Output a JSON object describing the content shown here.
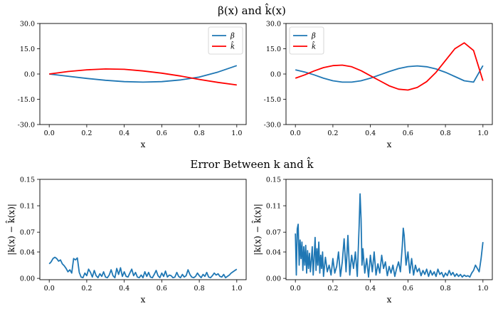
{
  "page": {
    "title_top": "β(x) and k̂(x)",
    "title_bottom": "Error Between k and k̂"
  },
  "colors": {
    "beta": "#1f77b4",
    "khat": "#ff0000",
    "error": "#1f77b4",
    "axis": "#000000"
  },
  "chart_data": [
    {
      "type": "line",
      "id": "top-left",
      "title": "",
      "xlabel": "x",
      "ylabel": "",
      "xlim": [
        -0.05,
        1.05
      ],
      "ylim": [
        -30,
        30
      ],
      "xticks": [
        0.0,
        0.2,
        0.4,
        0.6,
        0.8,
        1.0
      ],
      "xtick_labels": [
        "0.0",
        "0.2",
        "0.4",
        "0.6",
        "0.8",
        "1.0"
      ],
      "yticks": [
        -30,
        -15,
        0,
        15,
        30
      ],
      "ytick_labels": [
        "-30.0",
        "-15.0",
        "0.0",
        "15.0",
        "30.0"
      ],
      "legend": "top-right",
      "series": [
        {
          "name": "β",
          "color_key": "beta",
          "x": [
            0.0,
            0.1,
            0.2,
            0.3,
            0.4,
            0.5,
            0.6,
            0.7,
            0.8,
            0.9,
            1.0
          ],
          "y": [
            0.0,
            -1.3,
            -2.6,
            -3.7,
            -4.5,
            -4.8,
            -4.5,
            -3.5,
            -1.8,
            1.2,
            5.0
          ]
        },
        {
          "name": "k̂",
          "color_key": "khat",
          "x": [
            0.0,
            0.1,
            0.2,
            0.3,
            0.4,
            0.5,
            0.6,
            0.7,
            0.8,
            0.9,
            1.0
          ],
          "y": [
            0.0,
            1.5,
            2.5,
            3.0,
            2.8,
            1.8,
            0.5,
            -1.2,
            -3.2,
            -5.0,
            -6.5
          ]
        }
      ]
    },
    {
      "type": "line",
      "id": "top-right",
      "title": "",
      "xlabel": "x",
      "ylabel": "",
      "xlim": [
        -0.05,
        1.05
      ],
      "ylim": [
        -30,
        30
      ],
      "xticks": [
        0.0,
        0.2,
        0.4,
        0.6,
        0.8,
        1.0
      ],
      "xtick_labels": [
        "0.0",
        "0.2",
        "0.4",
        "0.6",
        "0.8",
        "1.0"
      ],
      "yticks": [
        -30,
        -15,
        0,
        15,
        30
      ],
      "ytick_labels": [
        "-30.0",
        "-15.0",
        "0.0",
        "15.0",
        "30.0"
      ],
      "legend": "top-left",
      "series": [
        {
          "name": "β",
          "color_key": "beta",
          "x": [
            0.0,
            0.05,
            0.1,
            0.15,
            0.2,
            0.25,
            0.3,
            0.35,
            0.4,
            0.45,
            0.5,
            0.55,
            0.6,
            0.65,
            0.7,
            0.75,
            0.8,
            0.85,
            0.9,
            0.95,
            1.0
          ],
          "y": [
            2.5,
            1.2,
            -0.5,
            -2.5,
            -4.0,
            -4.8,
            -4.8,
            -4.0,
            -2.5,
            -0.5,
            1.5,
            3.2,
            4.4,
            4.8,
            4.3,
            3.0,
            1.0,
            -1.5,
            -4.0,
            -4.8,
            5.0
          ]
        },
        {
          "name": "k̂",
          "color_key": "khat",
          "x": [
            0.0,
            0.05,
            0.1,
            0.15,
            0.2,
            0.25,
            0.3,
            0.35,
            0.4,
            0.45,
            0.5,
            0.55,
            0.6,
            0.65,
            0.7,
            0.75,
            0.8,
            0.85,
            0.9,
            0.95,
            1.0
          ],
          "y": [
            -2.5,
            -0.5,
            1.8,
            3.8,
            5.0,
            5.3,
            4.3,
            2.0,
            -1.0,
            -4.0,
            -7.0,
            -9.0,
            -9.5,
            -8.0,
            -4.5,
            1.0,
            8.0,
            15.0,
            18.5,
            14.0,
            -4.0
          ]
        }
      ]
    },
    {
      "type": "line",
      "id": "bottom-left",
      "title": "",
      "xlabel": "x",
      "ylabel": "|k(x) − k̂(x)|",
      "xlim": [
        -0.05,
        1.05
      ],
      "ylim": [
        -0.002,
        0.15
      ],
      "xticks": [
        0.0,
        0.2,
        0.4,
        0.6,
        0.8,
        1.0
      ],
      "xtick_labels": [
        "0.0",
        "0.2",
        "0.4",
        "0.6",
        "0.8",
        "1.0"
      ],
      "yticks": [
        0.0,
        0.04,
        0.07,
        0.11,
        0.15
      ],
      "ytick_labels": [
        "0.00",
        "0.04",
        "0.07",
        "0.11",
        "0.15"
      ],
      "legend": "none",
      "series": [
        {
          "name": "error",
          "color_key": "error",
          "x": [
            0.0,
            0.01,
            0.02,
            0.03,
            0.04,
            0.05,
            0.06,
            0.07,
            0.08,
            0.09,
            0.1,
            0.11,
            0.12,
            0.13,
            0.14,
            0.15,
            0.16,
            0.17,
            0.18,
            0.19,
            0.2,
            0.21,
            0.22,
            0.23,
            0.24,
            0.25,
            0.26,
            0.27,
            0.28,
            0.29,
            0.3,
            0.31,
            0.32,
            0.33,
            0.34,
            0.35,
            0.36,
            0.37,
            0.38,
            0.39,
            0.4,
            0.41,
            0.42,
            0.43,
            0.44,
            0.45,
            0.46,
            0.47,
            0.48,
            0.49,
            0.5,
            0.51,
            0.52,
            0.53,
            0.54,
            0.55,
            0.56,
            0.57,
            0.58,
            0.59,
            0.6,
            0.61,
            0.62,
            0.63,
            0.64,
            0.65,
            0.66,
            0.67,
            0.68,
            0.69,
            0.7,
            0.71,
            0.72,
            0.73,
            0.74,
            0.75,
            0.76,
            0.77,
            0.78,
            0.79,
            0.8,
            0.81,
            0.82,
            0.83,
            0.84,
            0.85,
            0.86,
            0.87,
            0.88,
            0.89,
            0.9,
            0.91,
            0.92,
            0.93,
            0.94,
            0.95,
            0.96,
            0.97,
            0.98,
            0.99,
            1.0
          ],
          "y": [
            0.022,
            0.025,
            0.03,
            0.032,
            0.03,
            0.026,
            0.028,
            0.022,
            0.019,
            0.015,
            0.01,
            0.013,
            0.008,
            0.03,
            0.028,
            0.031,
            0.009,
            0.002,
            0.001,
            0.008,
            0.004,
            0.014,
            0.009,
            0.002,
            0.012,
            0.004,
            0.001,
            0.007,
            0.003,
            0.01,
            0.002,
            0.001,
            0.005,
            0.013,
            0.004,
            0.001,
            0.015,
            0.006,
            0.016,
            0.003,
            0.01,
            0.003,
            0.002,
            0.008,
            0.014,
            0.004,
            0.009,
            0.002,
            0.001,
            0.005,
            0.001,
            0.01,
            0.003,
            0.009,
            0.002,
            0.001,
            0.006,
            0.012,
            0.004,
            0.001,
            0.008,
            0.003,
            0.011,
            0.002,
            0.005,
            0.004,
            0.001,
            0.002,
            0.009,
            0.003,
            0.001,
            0.006,
            0.002,
            0.004,
            0.013,
            0.006,
            0.002,
            0.001,
            0.003,
            0.008,
            0.004,
            0.001,
            0.006,
            0.003,
            0.009,
            0.002,
            0.001,
            0.004,
            0.008,
            0.005,
            0.007,
            0.003,
            0.002,
            0.006,
            0.001,
            0.003,
            0.005,
            0.008,
            0.01,
            0.012,
            0.014
          ]
        }
      ]
    },
    {
      "type": "line",
      "id": "bottom-right",
      "title": "",
      "xlabel": "x",
      "ylabel": "|k(x) − k̂(x)|",
      "xlim": [
        -0.05,
        1.05
      ],
      "ylim": [
        -0.002,
        0.15
      ],
      "xticks": [
        0.0,
        0.2,
        0.4,
        0.6,
        0.8,
        1.0
      ],
      "xtick_labels": [
        "0.0",
        "0.2",
        "0.4",
        "0.6",
        "0.8",
        "1.0"
      ],
      "yticks": [
        0.0,
        0.04,
        0.07,
        0.11,
        0.15
      ],
      "ytick_labels": [
        "0.00",
        "0.04",
        "0.07",
        "0.11",
        "0.15"
      ],
      "legend": "none",
      "series": [
        {
          "name": "error",
          "color_key": "error",
          "x": [
            0.0,
            0.005,
            0.01,
            0.015,
            0.02,
            0.025,
            0.03,
            0.035,
            0.04,
            0.045,
            0.05,
            0.055,
            0.06,
            0.065,
            0.07,
            0.075,
            0.08,
            0.085,
            0.09,
            0.095,
            0.1,
            0.105,
            0.11,
            0.115,
            0.12,
            0.125,
            0.13,
            0.135,
            0.14,
            0.145,
            0.15,
            0.16,
            0.17,
            0.18,
            0.19,
            0.2,
            0.21,
            0.22,
            0.23,
            0.24,
            0.25,
            0.26,
            0.27,
            0.28,
            0.29,
            0.3,
            0.31,
            0.32,
            0.33,
            0.34,
            0.345,
            0.35,
            0.355,
            0.36,
            0.37,
            0.38,
            0.39,
            0.4,
            0.41,
            0.42,
            0.43,
            0.44,
            0.45,
            0.46,
            0.47,
            0.48,
            0.49,
            0.5,
            0.51,
            0.52,
            0.53,
            0.54,
            0.55,
            0.56,
            0.57,
            0.575,
            0.58,
            0.59,
            0.6,
            0.61,
            0.62,
            0.63,
            0.64,
            0.65,
            0.66,
            0.67,
            0.68,
            0.69,
            0.7,
            0.71,
            0.72,
            0.73,
            0.74,
            0.75,
            0.76,
            0.77,
            0.78,
            0.79,
            0.8,
            0.81,
            0.82,
            0.83,
            0.84,
            0.85,
            0.86,
            0.87,
            0.88,
            0.89,
            0.9,
            0.91,
            0.92,
            0.93,
            0.94,
            0.95,
            0.96,
            0.97,
            0.98,
            0.99,
            1.0
          ],
          "y": [
            0.068,
            0.005,
            0.075,
            0.082,
            0.02,
            0.058,
            0.03,
            0.055,
            0.012,
            0.048,
            0.02,
            0.05,
            0.008,
            0.042,
            0.015,
            0.038,
            0.01,
            0.028,
            0.048,
            0.005,
            0.03,
            0.062,
            0.012,
            0.045,
            0.02,
            0.055,
            0.008,
            0.035,
            0.015,
            0.04,
            0.003,
            0.032,
            0.01,
            0.02,
            0.005,
            0.03,
            0.008,
            0.018,
            0.04,
            0.003,
            0.025,
            0.06,
            0.01,
            0.065,
            0.005,
            0.035,
            0.015,
            0.04,
            0.003,
            0.08,
            0.128,
            0.09,
            0.02,
            0.045,
            0.008,
            0.03,
            0.002,
            0.035,
            0.01,
            0.04,
            0.005,
            0.022,
            0.008,
            0.035,
            0.015,
            0.025,
            0.004,
            0.018,
            0.008,
            0.02,
            0.003,
            0.015,
            0.025,
            0.01,
            0.05,
            0.076,
            0.065,
            0.02,
            0.04,
            0.008,
            0.03,
            0.005,
            0.02,
            0.01,
            0.015,
            0.004,
            0.012,
            0.006,
            0.014,
            0.003,
            0.012,
            0.005,
            0.01,
            0.003,
            0.014,
            0.006,
            0.009,
            0.002,
            0.008,
            0.004,
            0.012,
            0.005,
            0.009,
            0.003,
            0.007,
            0.003,
            0.006,
            0.002,
            0.005,
            0.003,
            0.004,
            0.002,
            0.008,
            0.012,
            0.02,
            0.015,
            0.01,
            0.03,
            0.055
          ]
        }
      ]
    }
  ]
}
